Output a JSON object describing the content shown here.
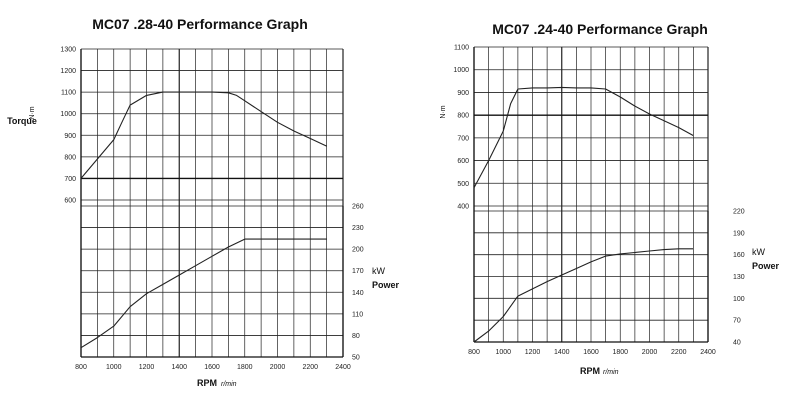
{
  "chart_data": [
    {
      "type": "line",
      "title": "MC07 .28-40 Performance Graph",
      "xlabel": "RPM",
      "xlabel_unit": "r/min",
      "xlim": [
        800,
        2400
      ],
      "x_ticks": [
        "800",
        "1000",
        "1200",
        "1400",
        "1600",
        "1800",
        "2000",
        "2200",
        "2400"
      ],
      "torque_axis": {
        "label": "Torque",
        "unit": "N·m",
        "ylim": [
          600,
          1300
        ],
        "ticks": [
          "600",
          "700",
          "800",
          "900",
          "1000",
          "1100",
          "1200",
          "1300"
        ]
      },
      "power_axis": {
        "label": "Power",
        "unit": "kW",
        "ylim": [
          50,
          260
        ],
        "ticks": [
          "50",
          "80",
          "110",
          "140",
          "170",
          "200",
          "230",
          "260"
        ]
      },
      "series": [
        {
          "name": "Torque",
          "axis": "torque",
          "x": [
            800,
            900,
            1000,
            1050,
            1100,
            1200,
            1300,
            1400,
            1500,
            1600,
            1700,
            1750,
            1800,
            1900,
            2000,
            2100,
            2200,
            2300
          ],
          "values": [
            700,
            790,
            880,
            960,
            1040,
            1085,
            1100,
            1100,
            1100,
            1100,
            1097,
            1085,
            1060,
            1010,
            960,
            920,
            885,
            850
          ]
        },
        {
          "name": "Power",
          "axis": "power",
          "x": [
            800,
            900,
            1000,
            1100,
            1200,
            1300,
            1400,
            1500,
            1600,
            1700,
            1800,
            2000,
            2200,
            2300
          ],
          "values": [
            63,
            77,
            93,
            120,
            138,
            151,
            164,
            177,
            190,
            203,
            214,
            214,
            214,
            214
          ]
        }
      ],
      "grid": true
    },
    {
      "type": "line",
      "title": "MC07 .24-40 Performance Graph",
      "xlabel": "RPM",
      "xlabel_unit": "r/min",
      "xlim": [
        800,
        2400
      ],
      "x_ticks": [
        "800",
        "1000",
        "1200",
        "1400",
        "1600",
        "1800",
        "2000",
        "2200",
        "2400"
      ],
      "torque_axis": {
        "label": "",
        "unit": "N·m",
        "ylim": [
          400,
          1100
        ],
        "ticks": [
          "400",
          "500",
          "600",
          "700",
          "800",
          "900",
          "1000",
          "1100"
        ]
      },
      "power_axis": {
        "label": "Power",
        "unit": "kW",
        "ylim": [
          40,
          220
        ],
        "ticks": [
          "40",
          "70",
          "100",
          "130",
          "160",
          "190",
          "220"
        ],
        "tick_labels": [
          "40",
          "70",
          "100",
          "130",
          "160",
          "190",
          "220"
        ]
      },
      "series": [
        {
          "name": "Torque",
          "axis": "torque",
          "x": [
            800,
            900,
            1000,
            1050,
            1100,
            1200,
            1300,
            1400,
            1500,
            1600,
            1700,
            1800,
            1900,
            2000,
            2100,
            2200,
            2300
          ],
          "values": [
            480,
            600,
            730,
            850,
            915,
            920,
            920,
            922,
            920,
            920,
            915,
            880,
            840,
            805,
            775,
            745,
            710
          ]
        },
        {
          "name": "Power",
          "axis": "power",
          "x": [
            800,
            900,
            1000,
            1100,
            1200,
            1300,
            1400,
            1500,
            1600,
            1700,
            1800,
            1900,
            2000,
            2100,
            2200,
            2300
          ],
          "values": [
            40,
            55,
            75,
            103,
            113,
            123,
            132,
            141,
            150,
            158,
            161,
            163,
            165,
            167,
            168,
            168
          ]
        }
      ],
      "grid": true
    }
  ]
}
